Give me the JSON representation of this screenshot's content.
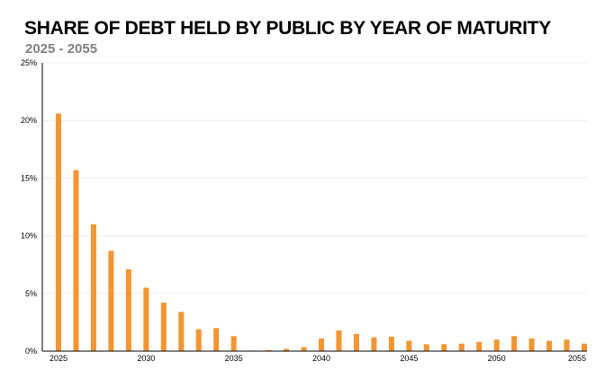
{
  "chart_data": {
    "type": "bar",
    "title": "SHARE OF DEBT HELD BY PUBLIC BY YEAR OF MATURITY",
    "subtitle": "2025 - 2055",
    "xlabel": "",
    "ylabel": "",
    "x": [
      2025,
      2026,
      2027,
      2028,
      2029,
      2030,
      2031,
      2032,
      2033,
      2034,
      2035,
      2036,
      2037,
      2038,
      2039,
      2040,
      2041,
      2042,
      2043,
      2044,
      2045,
      2046,
      2047,
      2048,
      2049,
      2050,
      2051,
      2052,
      2053,
      2054,
      2055
    ],
    "values": [
      20.6,
      15.7,
      11.0,
      8.7,
      7.1,
      5.5,
      4.2,
      3.4,
      1.9,
      2.0,
      1.3,
      0.05,
      0.1,
      0.2,
      0.35,
      1.1,
      1.8,
      1.5,
      1.2,
      1.25,
      0.9,
      0.6,
      0.6,
      0.65,
      0.8,
      1.0,
      1.3,
      1.1,
      0.9,
      1.0,
      0.65
    ],
    "value_unit": "%",
    "ylim": [
      0,
      25
    ],
    "yticks": [
      "0%",
      "5%",
      "10%",
      "15%",
      "20%",
      "25%"
    ],
    "xticks": [
      "2025",
      "2030",
      "2035",
      "2040",
      "2045",
      "2050",
      "2055"
    ],
    "grid": true,
    "bar_color": "#f39530",
    "grid_color": "#ececec",
    "axis_color": "#000000"
  }
}
